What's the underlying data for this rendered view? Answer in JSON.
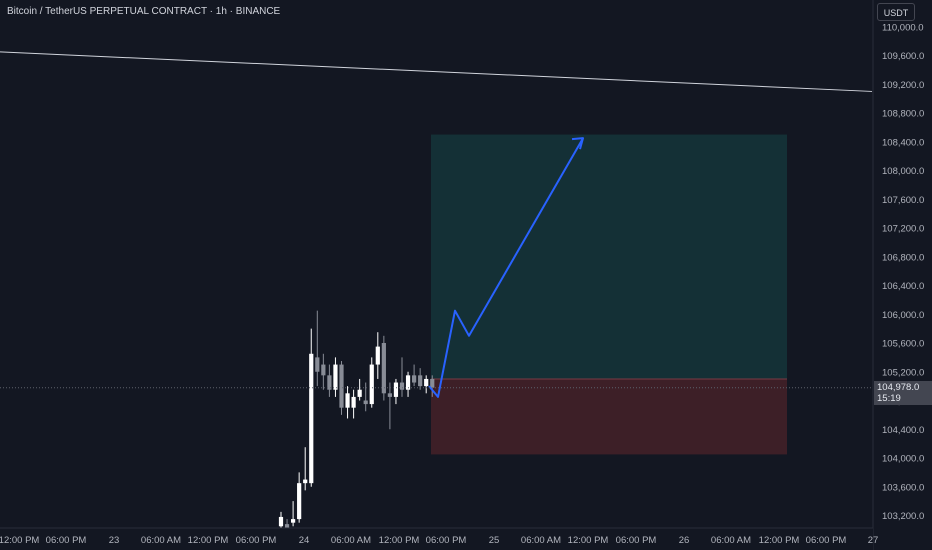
{
  "header": {
    "title": "Bitcoin / TetherUS PERPETUAL CONTRACT · 1h · BINANCE"
  },
  "price_axis": {
    "unit_label": "USDT",
    "current_price_label": "104,978.0",
    "countdown_label": "15:19"
  },
  "colors": {
    "background": "#131722",
    "bull_candle": "#ffffff",
    "bear_candle": "#888c96",
    "target_zone": "#143036",
    "stop_zone": "#3d1f27",
    "projection_arrow": "#2962ff",
    "trendline": "#d1d4dc"
  },
  "chart_data": {
    "type": "candlestick",
    "symbol": "Bitcoin / TetherUS PERPETUAL CONTRACT",
    "interval": "1h",
    "exchange": "BINANCE",
    "y_axis": {
      "unit": "USDT",
      "range": [
        103000,
        110100
      ],
      "ticks": [
        103200,
        103600,
        104000,
        104400,
        104800,
        105200,
        105600,
        106000,
        106400,
        106800,
        107200,
        107600,
        108000,
        108400,
        108800,
        109200,
        109600
      ],
      "tick_labels": [
        "103,200.0",
        "103,600.0",
        "104,000.0",
        "104,400.0",
        "104,800.0",
        "105,200.0",
        "105,600.0",
        "106,000.0",
        "106,400.0",
        "106,800.0",
        "107,200.0",
        "107,600.0",
        "108,000.0",
        "108,400.0",
        "108,800.0",
        "109,200.0",
        "109,600.0"
      ]
    },
    "x_axis": {
      "tick_labels": [
        "12:00 PM",
        "06:00 PM",
        "23",
        "06:00 AM",
        "12:00 PM",
        "06:00 PM",
        "24",
        "06:00 AM",
        "12:00 PM",
        "06:00 PM",
        "25",
        "06:00 AM",
        "12:00 PM",
        "06:00 PM",
        "26",
        "06:00 AM",
        "12:00 PM",
        "06:00 PM",
        "27"
      ]
    },
    "candles": [
      {
        "open": 103050,
        "high": 103250,
        "low": 102950,
        "close": 103180
      },
      {
        "open": 103080,
        "high": 103150,
        "low": 102950,
        "close": 103020
      },
      {
        "open": 103100,
        "high": 103400,
        "low": 103050,
        "close": 103150
      },
      {
        "open": 103150,
        "high": 103800,
        "low": 103100,
        "close": 103650
      },
      {
        "open": 103650,
        "high": 104150,
        "low": 103550,
        "close": 103700
      },
      {
        "open": 103650,
        "high": 105800,
        "low": 103600,
        "close": 105450
      },
      {
        "open": 105400,
        "high": 106050,
        "low": 105000,
        "close": 105200
      },
      {
        "open": 105300,
        "high": 105450,
        "low": 104950,
        "close": 105150
      },
      {
        "open": 105150,
        "high": 105300,
        "low": 104850,
        "close": 104950
      },
      {
        "open": 104950,
        "high": 105400,
        "low": 104850,
        "close": 105300
      },
      {
        "open": 105300,
        "high": 105350,
        "low": 104600,
        "close": 104700
      },
      {
        "open": 104700,
        "high": 105000,
        "low": 104550,
        "close": 104900
      },
      {
        "open": 104700,
        "high": 104950,
        "low": 104550,
        "close": 104850
      },
      {
        "open": 104850,
        "high": 105100,
        "low": 104800,
        "close": 104950
      },
      {
        "open": 104800,
        "high": 105050,
        "low": 104650,
        "close": 104750
      },
      {
        "open": 104750,
        "high": 105400,
        "low": 104700,
        "close": 105300
      },
      {
        "open": 105300,
        "high": 105750,
        "low": 105100,
        "close": 105550
      },
      {
        "open": 105600,
        "high": 105700,
        "low": 104800,
        "close": 104900
      },
      {
        "open": 104900,
        "high": 105050,
        "low": 104400,
        "close": 104850
      },
      {
        "open": 104850,
        "high": 105100,
        "low": 104750,
        "close": 105050
      },
      {
        "open": 105050,
        "high": 105400,
        "low": 104850,
        "close": 104950
      },
      {
        "open": 104950,
        "high": 105200,
        "low": 104850,
        "close": 105150
      },
      {
        "open": 105150,
        "high": 105300,
        "low": 105000,
        "close": 105050
      },
      {
        "open": 105150,
        "high": 105250,
        "low": 104950,
        "close": 105000
      },
      {
        "open": 105000,
        "high": 105150,
        "low": 104900,
        "close": 105100
      },
      {
        "open": 105100,
        "high": 105150,
        "low": 104850,
        "close": 104978
      }
    ],
    "current_price": 104978.0,
    "trendline": [
      {
        "from": "left edge",
        "price": 109650
      },
      {
        "to": "right edge",
        "price": 109100
      }
    ],
    "position": {
      "entry": 105100,
      "target": 108500,
      "stop": 104050
    },
    "projection_path": [
      105000,
      104850,
      106050,
      105700,
      108450
    ],
    "grid": false,
    "legend": "none"
  }
}
